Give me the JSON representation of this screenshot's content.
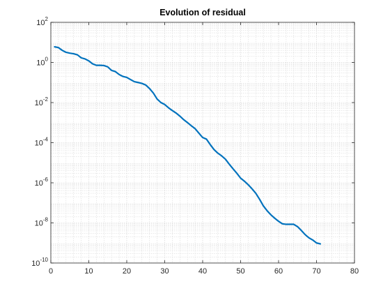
{
  "chart_data": {
    "type": "line",
    "title": "Evolution of residual",
    "xlabel": "",
    "ylabel": "",
    "xlim": [
      0,
      80
    ],
    "ylim": [
      1e-10,
      100
    ],
    "yscale": "log",
    "grid": "major-and-minor",
    "x_ticks": [
      0,
      10,
      20,
      30,
      40,
      50,
      60,
      70,
      80
    ],
    "y_ticks": [
      {
        "base": "10",
        "exp": "-10"
      },
      {
        "base": "10",
        "exp": "-8"
      },
      {
        "base": "10",
        "exp": "-6"
      },
      {
        "base": "10",
        "exp": "-4"
      },
      {
        "base": "10",
        "exp": "-2"
      },
      {
        "base": "10",
        "exp": "0"
      },
      {
        "base": "10",
        "exp": "2"
      }
    ],
    "series": [
      {
        "color": "#0072bd",
        "x": [
          1,
          2,
          3,
          4,
          5,
          6,
          7,
          8,
          9,
          10,
          11,
          12,
          13,
          14,
          15,
          16,
          17,
          18,
          19,
          20,
          21,
          22,
          23,
          24,
          25,
          26,
          27,
          28,
          29,
          30,
          31,
          32,
          33,
          34,
          35,
          36,
          37,
          38,
          39,
          40,
          41,
          42,
          43,
          44,
          45,
          46,
          47,
          48,
          49,
          50,
          51,
          52,
          53,
          54,
          55,
          56,
          57,
          58,
          59,
          60,
          61,
          62,
          63,
          64,
          65,
          66,
          67,
          68,
          69,
          70,
          71
        ],
        "y": [
          6,
          5.5,
          4,
          3.2,
          2.9,
          2.7,
          2.4,
          1.7,
          1.5,
          1.2,
          0.85,
          0.72,
          0.72,
          0.7,
          0.6,
          0.4,
          0.35,
          0.25,
          0.2,
          0.18,
          0.14,
          0.11,
          0.1,
          0.09,
          0.075,
          0.05,
          0.03,
          0.015,
          0.01,
          0.008,
          0.0055,
          0.004,
          0.003,
          0.0021,
          0.0014,
          0.001,
          0.0007,
          0.0005,
          0.0003,
          0.00018,
          0.00015,
          8e-05,
          4.5e-05,
          3e-05,
          2.2e-05,
          1.5e-05,
          8.5e-06,
          5e-06,
          3e-06,
          1.7e-06,
          1.2e-06,
          8e-07,
          5e-07,
          3e-07,
          1.5e-07,
          7e-08,
          4e-08,
          2.5e-08,
          1.7e-08,
          1.2e-08,
          9e-09,
          8.5e-09,
          8.5e-09,
          8.5e-09,
          6.5e-09,
          4.2e-09,
          2.6e-09,
          1.8e-09,
          1.4e-09,
          1e-09,
          9e-10
        ]
      }
    ]
  }
}
